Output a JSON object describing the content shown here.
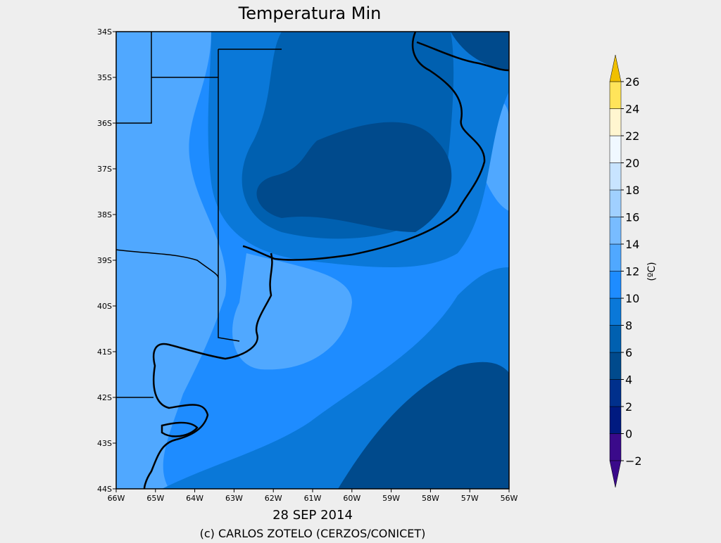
{
  "title": "Temperatura Min",
  "date": "28 SEP 2014",
  "credit": "(c) CARLOS ZOTELO (CERZOS/CONICET)",
  "lat_labels": [
    "34S",
    "35S",
    "36S",
    "37S",
    "38S",
    "39S",
    "40S",
    "41S",
    "42S",
    "43S",
    "44S"
  ],
  "lon_labels": [
    "66W",
    "65W",
    "64W",
    "63W",
    "62W",
    "61W",
    "60W",
    "59W",
    "58W",
    "57W",
    "56W"
  ],
  "colorbar": {
    "unit": "(ºC)",
    "ticks": [
      {
        "value": -2,
        "label": "−2"
      },
      0,
      2,
      4,
      6,
      8,
      10,
      12,
      14,
      16,
      18,
      20,
      22,
      24,
      26
    ],
    "colors": [
      "#3a0a8a",
      "#001a80",
      "#00308c",
      "#004a8c",
      "#0060b0",
      "#0a78d8",
      "#1e8cff",
      "#50a8ff",
      "#78bcff",
      "#a0d0ff",
      "#c8e4ff",
      "#f0f8ff",
      "#fff6d0",
      "#ffe45a"
    ],
    "under_color": "#3a0a8a",
    "over_color": "#f0c000"
  }
}
